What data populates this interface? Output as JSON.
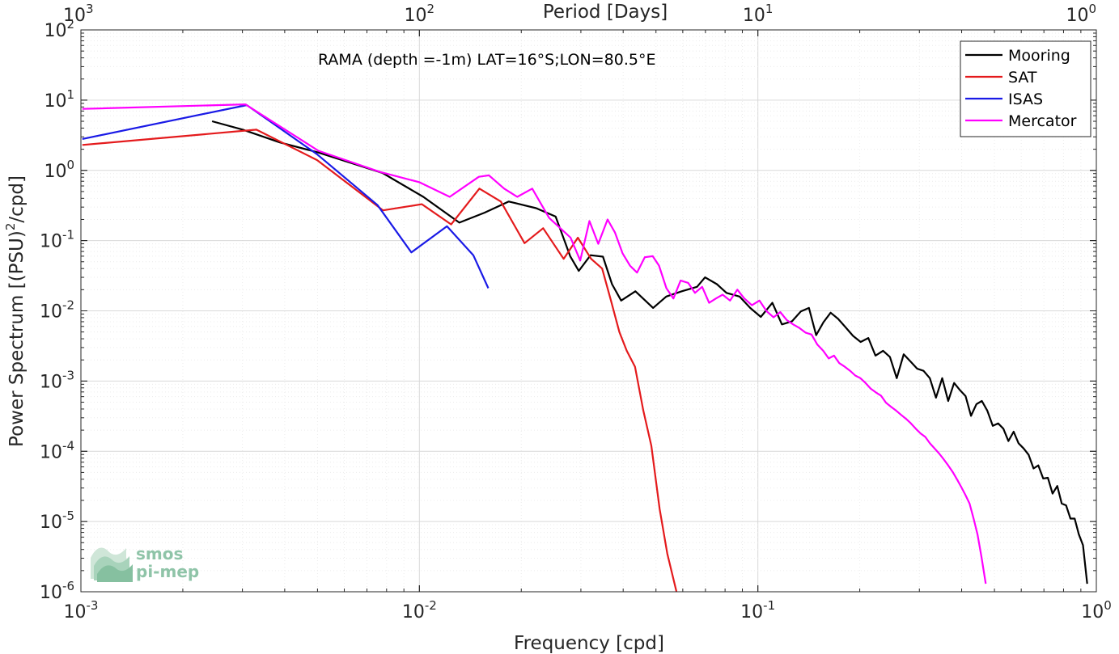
{
  "chart_data": {
    "type": "line",
    "title": "RAMA (depth =-1m) LAT=16°S;LON=80.5°E",
    "xlabel": "Frequency [cpd]",
    "ylabel": "Power Spectrum [(PSU)²/cpd]",
    "top_xlabel": "Period [Days]",
    "xscale": "log",
    "yscale": "log",
    "xlim": [
      0.001,
      1
    ],
    "ylim": [
      1e-06,
      100
    ],
    "grid": true,
    "legend_position": "top-right",
    "x_ticks": [
      {
        "base": "10",
        "exp": "-3"
      },
      {
        "base": "10",
        "exp": "-2"
      },
      {
        "base": "10",
        "exp": "-1"
      },
      {
        "base": "10",
        "exp": "0"
      }
    ],
    "top_ticks": [
      {
        "base": "10",
        "exp": "3"
      },
      {
        "base": "10",
        "exp": "2"
      },
      {
        "base": "10",
        "exp": "1"
      },
      {
        "base": "10",
        "exp": "0"
      }
    ],
    "y_ticks": [
      {
        "base": "10",
        "exp": "2"
      },
      {
        "base": "10",
        "exp": "1"
      },
      {
        "base": "10",
        "exp": "0"
      },
      {
        "base": "10",
        "exp": "-1"
      },
      {
        "base": "10",
        "exp": "-2"
      },
      {
        "base": "10",
        "exp": "-3"
      },
      {
        "base": "10",
        "exp": "-4"
      },
      {
        "base": "10",
        "exp": "-5"
      },
      {
        "base": "10",
        "exp": "-6"
      }
    ],
    "series": [
      {
        "name": "Mooring",
        "color": "#000000",
        "x": [
          0.00244,
          0.00301,
          0.00387,
          0.00502,
          0.00778,
          0.01027,
          0.01312,
          0.01557,
          0.01837,
          0.02212,
          0.02526,
          0.02789,
          0.02957,
          0.03205,
          0.03485,
          0.03708,
          0.03946,
          0.04347,
          0.04904,
          0.05364,
          0.05957,
          0.06612,
          0.06982,
          0.07566,
          0.08078,
          0.08829,
          0.09492,
          0.10202,
          0.11038,
          0.11775,
          0.12619,
          0.13387,
          0.14157,
          0.14862,
          0.15628,
          0.16408,
          0.17257,
          0.18182,
          0.19111,
          0.20123,
          0.21203,
          0.22254,
          0.23442,
          0.24563,
          0.25717,
          0.26974,
          0.28254,
          0.29557,
          0.30867,
          0.32212,
          0.33595,
          0.35046,
          0.36497,
          0.38005,
          0.39478,
          0.41078,
          0.42624,
          0.44241,
          0.45893,
          0.47623,
          0.49431,
          0.51254,
          0.53125,
          0.54973,
          0.56986,
          0.58906,
          0.60964,
          0.63071,
          0.65222,
          0.67387,
          0.69644,
          0.71906,
          0.74248,
          0.76636,
          0.79023,
          0.81399,
          0.83858,
          0.86294,
          0.88749,
          0.91331,
          0.93961
        ],
        "y": [
          5.0,
          3.8,
          2.5,
          1.8,
          0.92,
          0.42,
          0.18,
          0.25,
          0.36,
          0.29,
          0.22,
          0.06,
          0.037,
          0.062,
          0.059,
          0.024,
          0.014,
          0.019,
          0.011,
          0.016,
          0.019,
          0.022,
          0.03,
          0.024,
          0.018,
          0.016,
          0.011,
          0.0082,
          0.013,
          0.0064,
          0.0071,
          0.0098,
          0.011,
          0.0045,
          0.0069,
          0.0094,
          0.0077,
          0.0058,
          0.0044,
          0.0036,
          0.0041,
          0.0023,
          0.0027,
          0.0022,
          0.0011,
          0.0024,
          0.0019,
          0.0015,
          0.0014,
          0.0011,
          0.00058,
          0.0011,
          0.00052,
          0.00094,
          0.00075,
          0.00061,
          0.00032,
          0.00047,
          0.00052,
          0.00038,
          0.00023,
          0.00025,
          0.00021,
          0.00014,
          0.00019,
          0.00013,
          0.00011,
          8.9e-05,
          5.7e-05,
          6.3e-05,
          4.1e-05,
          4.2e-05,
          2.5e-05,
          3.2e-05,
          1.8e-05,
          1.7e-05,
          1.1e-05,
          1.1e-05,
          6.6e-06,
          4.6e-06,
          1.3e-06
        ]
      },
      {
        "name": "SAT",
        "color": "#e41a1c",
        "x": [
          0.00101,
          0.0033,
          0.00499,
          0.00781,
          0.01017,
          0.01241,
          0.01504,
          0.0174,
          0.02045,
          0.02321,
          0.02668,
          0.02939,
          0.03217,
          0.03467,
          0.03681,
          0.03898,
          0.04098,
          0.04334,
          0.04588,
          0.04845,
          0.05127,
          0.054,
          0.05748
        ],
        "y": [
          2.3,
          3.8,
          1.4,
          0.27,
          0.33,
          0.17,
          0.55,
          0.36,
          0.092,
          0.15,
          0.055,
          0.11,
          0.055,
          0.04,
          0.014,
          0.005,
          0.0027,
          0.0016,
          0.00038,
          0.00012,
          1.5e-05,
          3.5e-06,
          1e-06
        ]
      },
      {
        "name": "ISAS",
        "color": "#1a1ae6",
        "x": [
          0.00101,
          0.00309,
          0.00498,
          0.00752,
          0.00947,
          0.01206,
          0.01443,
          0.01598
        ],
        "y": [
          2.8,
          8.5,
          1.7,
          0.32,
          0.068,
          0.16,
          0.062,
          0.021
        ]
      },
      {
        "name": "Mercator",
        "color": "#ff00ff",
        "x": [
          0.00101,
          0.00306,
          0.00503,
          0.00765,
          0.00998,
          0.01229,
          0.01498,
          0.01605,
          0.0178,
          0.01946,
          0.02155,
          0.02418,
          0.02797,
          0.02987,
          0.0318,
          0.03377,
          0.03596,
          0.03783,
          0.03983,
          0.04189,
          0.04395,
          0.04633,
          0.04891,
          0.05104,
          0.05367,
          0.05629,
          0.05913,
          0.06222,
          0.06518,
          0.06845,
          0.07178,
          0.07519,
          0.0787,
          0.08278,
          0.08699,
          0.09119,
          0.09605,
          0.10105,
          0.10611,
          0.11126,
          0.11644,
          0.12175,
          0.12715,
          0.13268,
          0.13824,
          0.14408,
          0.14991,
          0.15591,
          0.16187,
          0.16791,
          0.17397,
          0.18056,
          0.18728,
          0.19391,
          0.20093,
          0.20796,
          0.21545,
          0.22312,
          0.23103,
          0.23917,
          0.24749,
          0.25609,
          0.26495,
          0.27395,
          0.28325,
          0.29271,
          0.30233,
          0.31234,
          0.32235,
          0.33269,
          0.34327,
          0.35391,
          0.36495,
          0.37614,
          0.38742,
          0.39893,
          0.41021,
          0.42219,
          0.43382,
          0.44586,
          0.45795,
          0.47121
        ],
        "y": [
          7.5,
          8.7,
          1.9,
          0.95,
          0.68,
          0.42,
          0.81,
          0.85,
          0.55,
          0.42,
          0.55,
          0.21,
          0.11,
          0.052,
          0.19,
          0.09,
          0.2,
          0.13,
          0.066,
          0.044,
          0.035,
          0.058,
          0.06,
          0.044,
          0.021,
          0.015,
          0.027,
          0.025,
          0.018,
          0.022,
          0.013,
          0.015,
          0.017,
          0.014,
          0.02,
          0.015,
          0.012,
          0.014,
          0.0099,
          0.0081,
          0.0096,
          0.0074,
          0.0064,
          0.0057,
          0.0049,
          0.0046,
          0.0033,
          0.0027,
          0.0021,
          0.0023,
          0.0018,
          0.0016,
          0.0014,
          0.0012,
          0.0011,
          0.00094,
          0.00078,
          0.00069,
          0.00062,
          0.00049,
          0.00043,
          0.00038,
          0.00033,
          0.00029,
          0.00025,
          0.00021,
          0.00018,
          0.00016,
          0.00013,
          0.00011,
          9.3e-05,
          7.7e-05,
          6.3e-05,
          5.1e-05,
          4e-05,
          3.1e-05,
          2.4e-05,
          1.8e-05,
          1.1e-05,
          6.5e-06,
          3.1e-06,
          1.3e-06
        ]
      }
    ]
  },
  "logo": {
    "line1": "smos",
    "line2": "pi-mep"
  }
}
